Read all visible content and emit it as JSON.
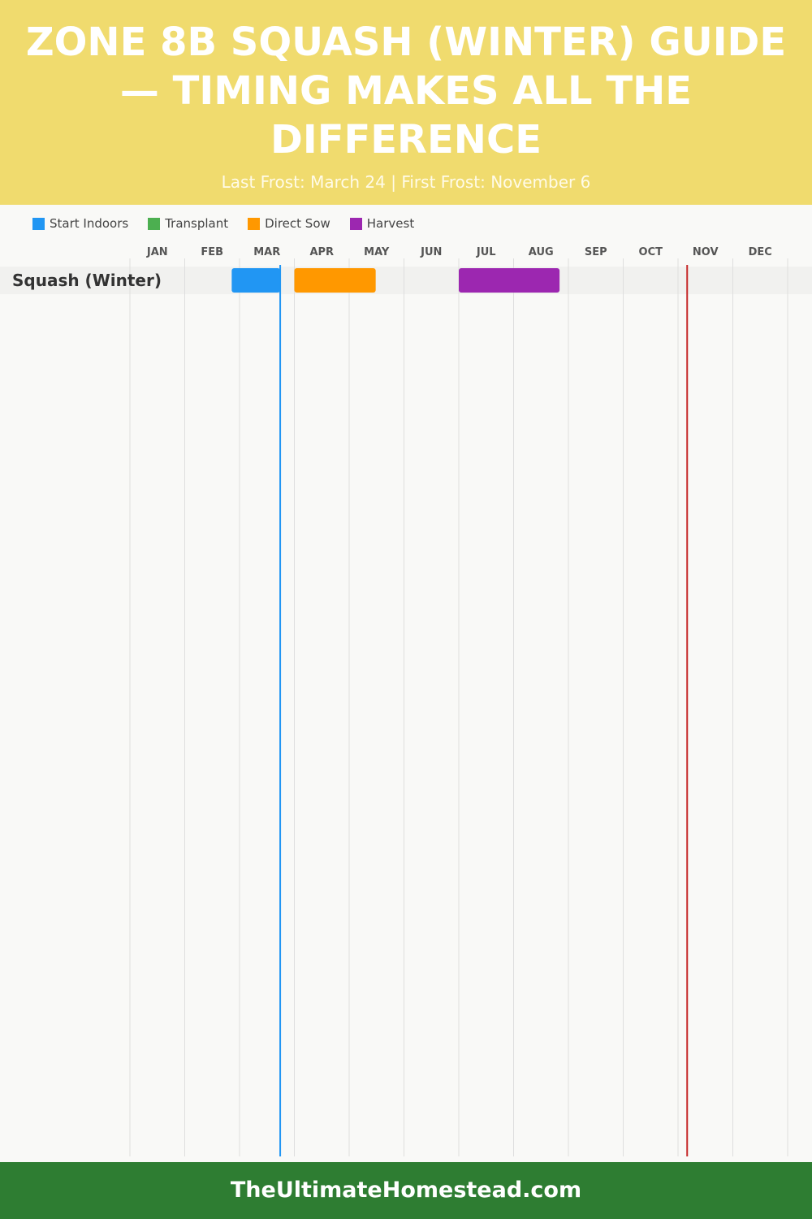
{
  "header": {
    "title": "ZONE 8B SQUASH (WINTER) GUIDE — TIMING MAKES ALL THE DIFFERENCE",
    "subtitle": "Last Frost: March 24 | First Frost: November 6"
  },
  "footer": {
    "text": "TheUltimateHomestead.com"
  },
  "chart_data": {
    "type": "gantt",
    "months": [
      "JAN",
      "FEB",
      "MAR",
      "APR",
      "MAY",
      "JUN",
      "JUL",
      "AUG",
      "SEP",
      "OCT",
      "NOV",
      "DEC"
    ],
    "legend": [
      {
        "name": "Start Indoors",
        "color": "#2196f3"
      },
      {
        "name": "Transplant",
        "color": "#4caf50"
      },
      {
        "name": "Direct Sow",
        "color": "#ff9800"
      },
      {
        "name": "Harvest",
        "color": "#9c27b0"
      }
    ],
    "rows": [
      {
        "label": "Squash (Winter)",
        "tasks": [
          {
            "type": "Start Indoors",
            "start": "02-25",
            "end": "03-24"
          },
          {
            "type": "Direct Sow",
            "start": "04-01",
            "end": "05-16"
          },
          {
            "type": "Harvest",
            "start": "07-01",
            "end": "08-27"
          }
        ]
      }
    ],
    "frost_lines": [
      {
        "name": "Last Frost",
        "date": "03-24",
        "color": "#2196f3"
      },
      {
        "name": "First Frost",
        "date": "11-06",
        "color": "#c62828"
      }
    ]
  }
}
